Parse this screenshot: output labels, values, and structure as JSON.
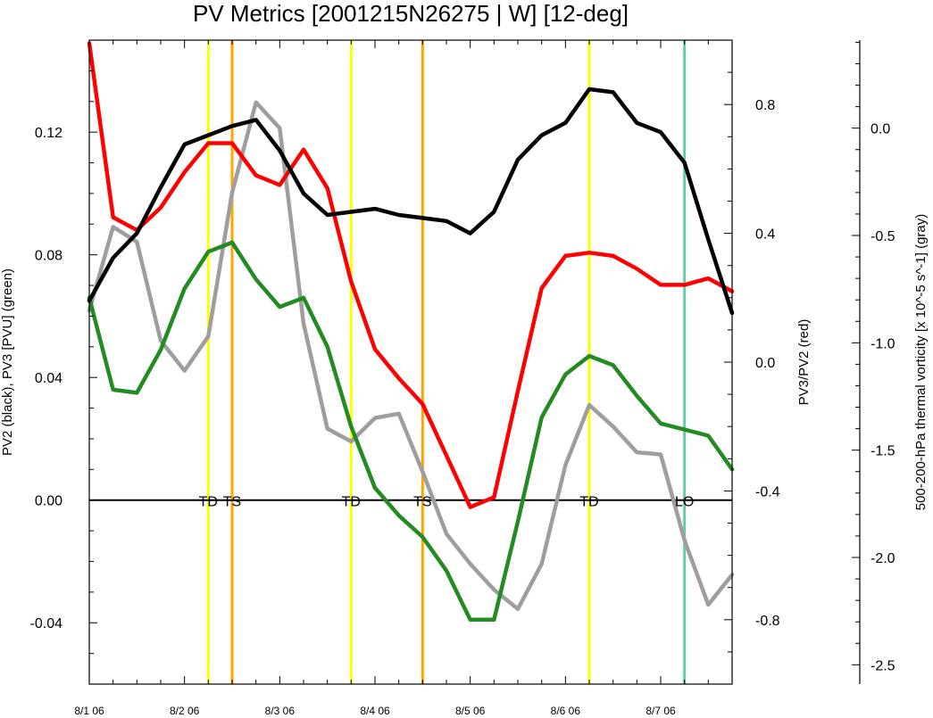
{
  "chart_data": {
    "type": "line",
    "title": "PV Metrics [2001215N26275 | W] [12-deg]",
    "ylabel_left": "PV2 (black), PV3 [PVU] (green)",
    "ylabel_right": "PV3/PV2 (red)",
    "ylabel_far_right": "500-200-hPa thermal vorticity [x 10^-5 s^-1] (gray)",
    "x_ticks": [
      "8/1 06",
      "8/2 06",
      "8/3 06",
      "8/4 06",
      "8/5 06",
      "8/6 06",
      "8/7 06"
    ],
    "x_range": [
      0,
      6.75
    ],
    "y_left": {
      "range": [
        -0.06,
        0.15
      ],
      "ticks": [
        "-0.04",
        "0.00",
        "0.04",
        "0.08",
        "0.12"
      ],
      "tick_values": [
        -0.04,
        0.0,
        0.04,
        0.08,
        0.12
      ]
    },
    "y_right": {
      "range": [
        -1.0,
        1.0
      ],
      "ticks": [
        "-0.8",
        "-0.4",
        "0.0",
        "0.4",
        "0.8"
      ],
      "tick_values": [
        -0.8,
        -0.4,
        0.0,
        0.4,
        0.8
      ]
    },
    "y_far_right": {
      "range": [
        -2.59,
        0.41
      ],
      "ticks": [
        "-2.5",
        "-2.0",
        "-1.5",
        "-1.0",
        "-0.5",
        "0.0"
      ],
      "tick_values": [
        -2.5,
        -2.0,
        -1.5,
        -1.0,
        -0.5,
        0.0
      ]
    },
    "x": [
      0,
      0.25,
      0.5,
      0.75,
      1.0,
      1.25,
      1.5,
      1.75,
      2.0,
      2.25,
      2.5,
      2.75,
      3.0,
      3.25,
      3.5,
      3.75,
      4.0,
      4.25,
      4.5,
      4.75,
      5.0,
      5.25,
      5.5,
      5.75,
      6.0,
      6.25,
      6.5,
      6.75
    ],
    "series": [
      {
        "key": "pv2",
        "axis": "left",
        "color": "#000000",
        "values": [
          0.065,
          0.079,
          0.087,
          0.102,
          0.116,
          0.119,
          0.122,
          0.124,
          0.114,
          0.1,
          0.093,
          0.094,
          0.095,
          0.093,
          0.092,
          0.091,
          0.087,
          0.094,
          0.111,
          0.119,
          0.123,
          0.134,
          0.133,
          0.123,
          0.12,
          0.11,
          0.085,
          0.061
        ]
      },
      {
        "key": "pv3",
        "axis": "left",
        "color": "#228b22",
        "values": [
          0.066,
          0.036,
          0.035,
          0.049,
          0.069,
          0.081,
          0.084,
          0.072,
          0.063,
          0.066,
          0.05,
          0.024,
          0.004,
          -0.005,
          -0.012,
          -0.023,
          -0.039,
          -0.039,
          -0.007,
          0.027,
          0.041,
          0.047,
          0.044,
          0.034,
          0.025,
          0.023,
          0.021,
          0.01
        ]
      },
      {
        "key": "ratio",
        "axis": "right",
        "color": "#ff0000",
        "values": [
          0.99,
          0.45,
          0.41,
          0.48,
          0.59,
          0.68,
          0.68,
          0.58,
          0.55,
          0.66,
          0.54,
          0.25,
          0.04,
          -0.05,
          -0.13,
          -0.29,
          -0.45,
          -0.42,
          -0.09,
          0.23,
          0.33,
          0.34,
          0.33,
          0.29,
          0.24,
          0.24,
          0.26,
          0.22
        ]
      },
      {
        "key": "thermal_vort",
        "axis": "far_right",
        "color": "#9e9e9e",
        "values": [
          -0.85,
          -0.46,
          -0.53,
          -0.99,
          -1.13,
          -0.97,
          -0.3,
          0.12,
          0.0,
          -0.91,
          -1.4,
          -1.46,
          -1.35,
          -1.33,
          -1.6,
          -1.89,
          -2.03,
          -2.15,
          -2.24,
          -2.03,
          -1.57,
          -1.29,
          -1.39,
          -1.51,
          -1.52,
          -1.92,
          -2.22,
          -2.08
        ]
      }
    ],
    "event_lines": [
      {
        "x": 1.25,
        "color": "#ffff00"
      },
      {
        "x": 1.5,
        "color": "#ffa500"
      },
      {
        "x": 2.75,
        "color": "#ffff00"
      },
      {
        "x": 3.5,
        "color": "#ffa500"
      },
      {
        "x": 5.25,
        "color": "#ffff00"
      },
      {
        "x": 6.25,
        "color": "#66cdaa"
      }
    ],
    "annotations": [
      {
        "text": "TD",
        "x": 1.25
      },
      {
        "text": "TS",
        "x": 1.5
      },
      {
        "text": "TD",
        "x": 2.75
      },
      {
        "text": "TS",
        "x": 3.5
      },
      {
        "text": "TD",
        "x": 5.25
      },
      {
        "text": "LO",
        "x": 6.25
      }
    ],
    "zero_line": 0.0,
    "grid": false,
    "legend": "none"
  }
}
